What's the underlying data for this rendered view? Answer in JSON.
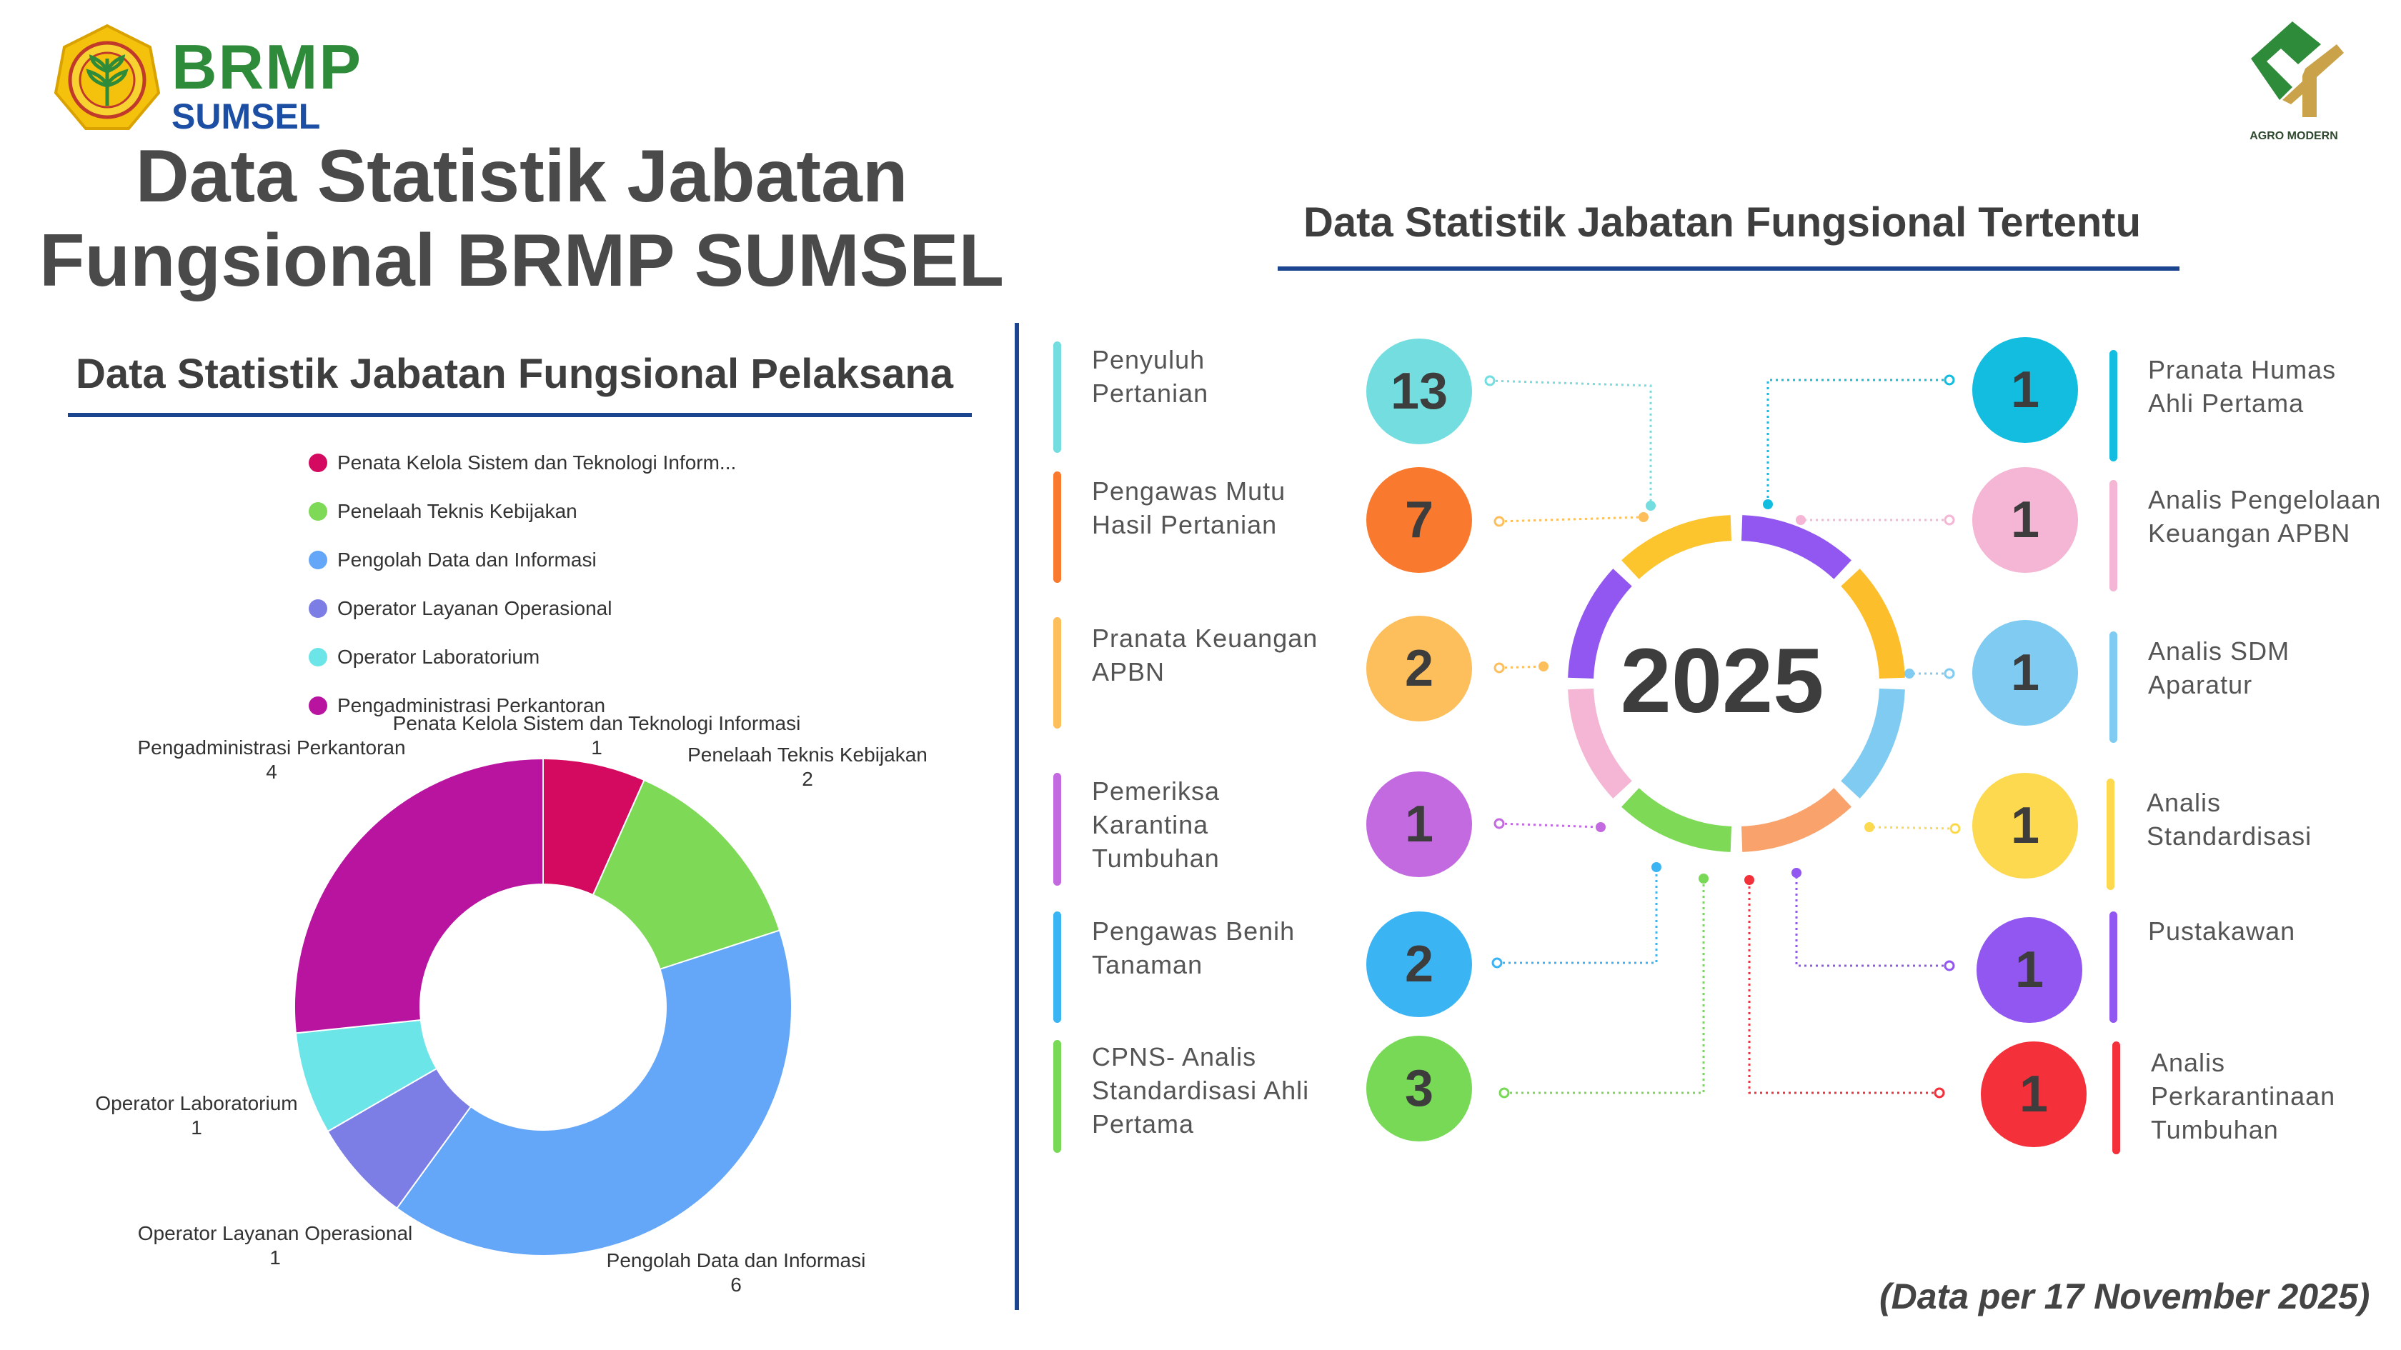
{
  "logo": {
    "brand": "BRMP",
    "region": "SUMSEL",
    "partner": "AGRO MODERN"
  },
  "title_lines": [
    "Data Statistik Jabatan",
    "Fungsional BRMP SUMSEL"
  ],
  "left_section": {
    "title": "Data Statistik Jabatan Fungsional Pelaksana"
  },
  "right_section": {
    "title": "Data Statistik Jabatan Fungsional Tertentu",
    "center_year": "2025"
  },
  "chart_data": {
    "type": "pie",
    "donut": true,
    "legend": {
      "placement": "top",
      "entries": [
        {
          "label": "Penata Kelola Sistem dan Teknologi Inform...",
          "color": "#d40a60"
        },
        {
          "label": "Penelaah Teknis Kebijakan",
          "color": "#7ed957"
        },
        {
          "label": "Pengolah Data dan Informasi",
          "color": "#64a6f8"
        },
        {
          "label": "Operator Layanan Operasional",
          "color": "#7c7ee6"
        },
        {
          "label": "Operator Laboratorium",
          "color": "#6ce5e8"
        },
        {
          "label": "Pengadministrasi Perkantoran",
          "color": "#b814a0"
        }
      ]
    },
    "slices": [
      {
        "label": "Penata Kelola Sistem dan Teknologi Informasi",
        "value": 1,
        "color": "#d40a60"
      },
      {
        "label": "Penelaah Teknis Kebijakan",
        "value": 2,
        "color": "#7ed957"
      },
      {
        "label": "Pengolah Data dan Informasi",
        "value": 6,
        "color": "#64a6f8"
      },
      {
        "label": "Operator Layanan Operasional",
        "value": 1,
        "color": "#7c7ee6"
      },
      {
        "label": "Operator Laboratorium",
        "value": 1,
        "color": "#6ce5e8"
      },
      {
        "label": "Pengadministrasi Perkantoran",
        "value": 4,
        "color": "#b814a0"
      }
    ]
  },
  "left_items": [
    {
      "label": "Penyuluh Pertanian",
      "value": "13",
      "color": "#73dde0"
    },
    {
      "label": "Pengawas Mutu Hasil Pertanian",
      "value": "7",
      "color": "#f97a2e"
    },
    {
      "label": "Pranata Keuangan APBN",
      "value": "2",
      "color": "#fdbe5c"
    },
    {
      "label": "Pemeriksa Karantina Tumbuhan",
      "value": "1",
      "color": "#c36ae0"
    },
    {
      "label": "Pengawas Benih Tanaman",
      "value": "2",
      "color": "#3bb4f4"
    },
    {
      "label": "CPNS- Analis Standardisasi Ahli Pertama",
      "value": "3",
      "color": "#78d957"
    }
  ],
  "right_items": [
    {
      "label": "Pranata Humas Ahli Pertama",
      "value": "1",
      "color": "#12bde0"
    },
    {
      "label": "Analis Pengelolaan Keuangan APBN",
      "value": "1",
      "color": "#f4b6d4"
    },
    {
      "label": "Analis SDM Aparatur",
      "value": "1",
      "color": "#7fcbf1"
    },
    {
      "label": "Analis Standardisasi",
      "value": "1",
      "color": "#fcd94f"
    },
    {
      "label": "Pustakawan",
      "value": "1",
      "color": "#9157f0"
    },
    {
      "label": "Analis Perkarantinaan Tumbuhan",
      "value": "1",
      "color": "#f4303a"
    }
  ],
  "footnote": "(Data per 17 November 2025)"
}
